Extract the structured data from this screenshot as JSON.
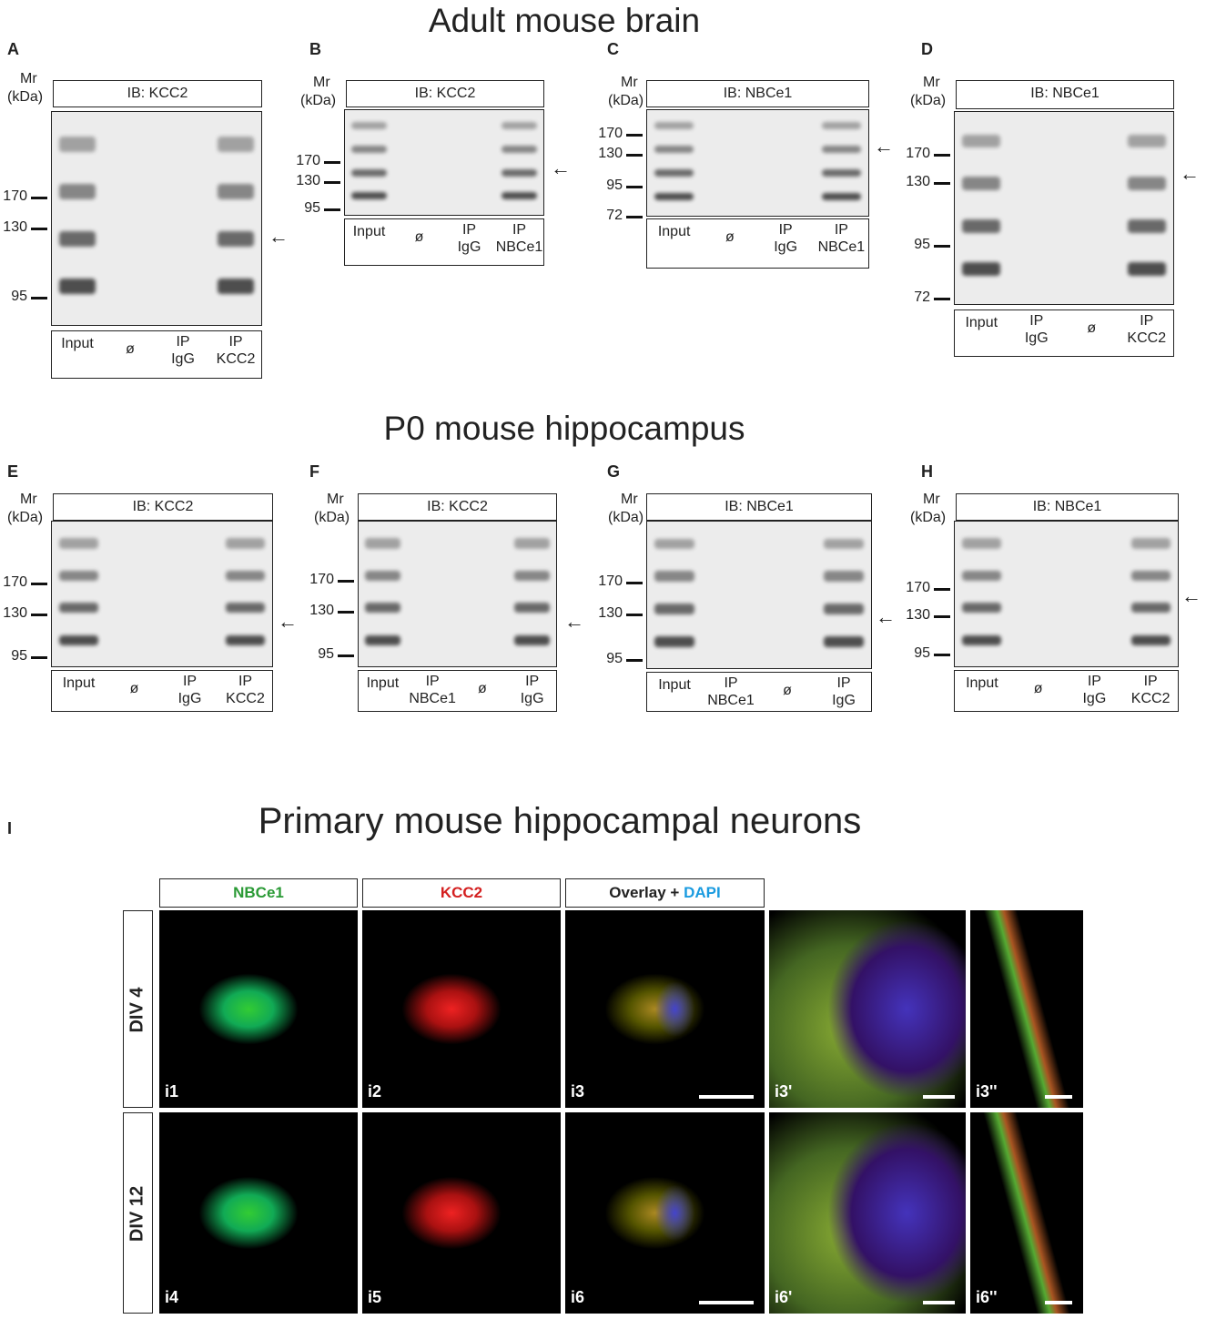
{
  "sections": [
    {
      "title": "Adult mouse brain",
      "panels": [
        {
          "letter": "A",
          "mr": "Mr",
          "kda": "(kDa)",
          "ib": "IB: KCC2",
          "markers": [
            170,
            130,
            95
          ],
          "lanes": [
            [
              "Input"
            ],
            [
              "ø"
            ],
            [
              "IP",
              "IgG"
            ],
            [
              "IP",
              "KCC2"
            ]
          ]
        },
        {
          "letter": "B",
          "mr": "Mr",
          "kda": "(kDa)",
          "ib": "IB: KCC2",
          "markers": [
            170,
            130,
            95
          ],
          "lanes": [
            [
              "Input"
            ],
            [
              "ø"
            ],
            [
              "IP",
              "IgG"
            ],
            [
              "IP",
              "NBCe1"
            ]
          ]
        },
        {
          "letter": "C",
          "mr": "Mr",
          "kda": "(kDa)",
          "ib": "IB: NBCe1",
          "markers": [
            170,
            130,
            95,
            72
          ],
          "lanes": [
            [
              "Input"
            ],
            [
              "ø"
            ],
            [
              "IP",
              "IgG"
            ],
            [
              "IP",
              "NBCe1"
            ]
          ]
        },
        {
          "letter": "D",
          "mr": "Mr",
          "kda": "(kDa)",
          "ib": "IB: NBCe1",
          "markers": [
            170,
            130,
            95,
            72
          ],
          "lanes": [
            [
              "Input"
            ],
            [
              "IP",
              "IgG"
            ],
            [
              "ø"
            ],
            [
              "IP",
              "KCC2"
            ]
          ]
        }
      ]
    },
    {
      "title": "P0 mouse hippocampus",
      "panels": [
        {
          "letter": "E",
          "mr": "Mr",
          "kda": "(kDa)",
          "ib": "IB: KCC2",
          "markers": [
            170,
            130,
            95
          ],
          "lanes": [
            [
              "Input"
            ],
            [
              "ø"
            ],
            [
              "IP",
              "IgG"
            ],
            [
              "IP",
              "KCC2"
            ]
          ]
        },
        {
          "letter": "F",
          "mr": "Mr",
          "kda": "(kDa)",
          "ib": "IB: KCC2",
          "markers": [
            170,
            130,
            95
          ],
          "lanes": [
            [
              "Input"
            ],
            [
              "IP",
              "NBCe1"
            ],
            [
              "ø"
            ],
            [
              "IP",
              "IgG"
            ]
          ]
        },
        {
          "letter": "G",
          "mr": "Mr",
          "kda": "(kDa)",
          "ib": "IB: NBCe1",
          "markers": [
            170,
            130,
            95
          ],
          "lanes": [
            [
              "Input"
            ],
            [
              "IP",
              "NBCe1"
            ],
            [
              "ø"
            ],
            [
              "IP",
              "IgG"
            ]
          ]
        },
        {
          "letter": "H",
          "mr": "Mr",
          "kda": "(kDa)",
          "ib": "IB: NBCe1",
          "markers": [
            170,
            130,
            95
          ],
          "lanes": [
            [
              "Input"
            ],
            [
              "ø"
            ],
            [
              "IP",
              "IgG"
            ],
            [
              "IP",
              "KCC2"
            ]
          ]
        }
      ]
    }
  ],
  "imaging": {
    "letter": "I",
    "title": "Primary mouse hippocampal neurons",
    "headers": [
      [
        "NBCe1"
      ],
      [
        "KCC2"
      ],
      [
        "Overlay + ",
        "DAPI"
      ]
    ],
    "rows": [
      {
        "label": "DIV 4",
        "images": [
          "i1",
          "i2",
          "i3",
          "i3'",
          "i3''"
        ]
      },
      {
        "label": "DIV 12",
        "images": [
          "i4",
          "i5",
          "i6",
          "i6'",
          "i6''"
        ]
      }
    ]
  }
}
